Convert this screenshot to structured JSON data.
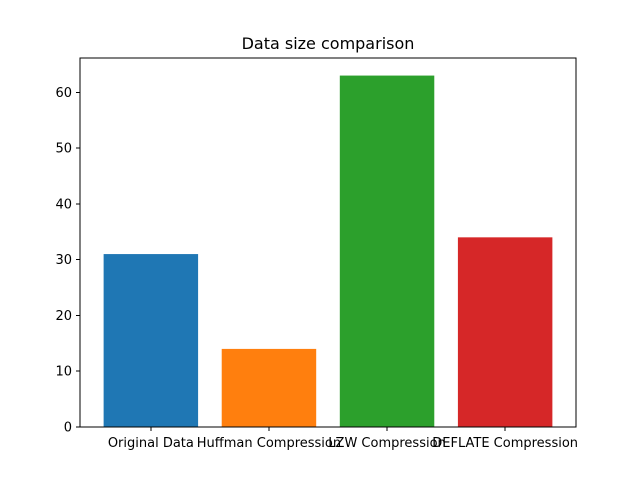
{
  "chart_data": {
    "type": "bar",
    "title": "Data size comparison",
    "xlabel": "",
    "ylabel": "",
    "categories": [
      "Original Data",
      "Huffman Compression",
      "LZW Compression",
      "DEFLATE Compression"
    ],
    "values": [
      31,
      14,
      63,
      34
    ],
    "colors": [
      "#1f77b4",
      "#ff7f0e",
      "#2ca02c",
      "#d62728"
    ],
    "ylim": [
      0,
      66.15
    ],
    "yticks": [
      0,
      10,
      20,
      30,
      40,
      50,
      60
    ],
    "grid": false,
    "legend": "none"
  }
}
